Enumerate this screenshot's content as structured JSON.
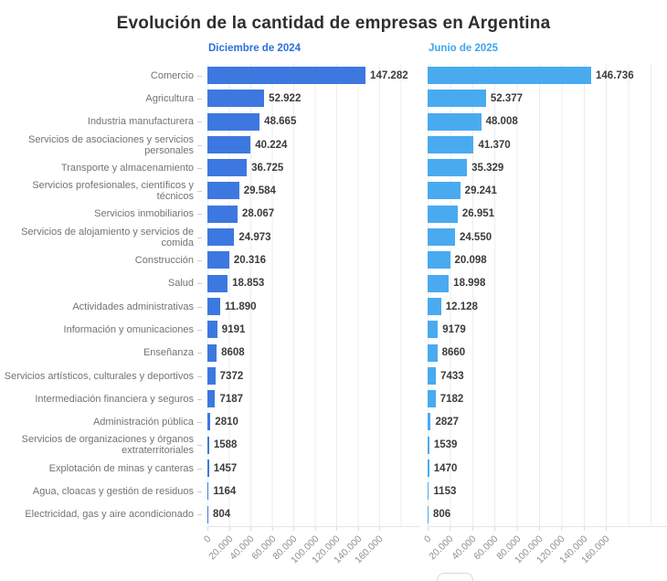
{
  "title": "Evolución de la cantidad de empresas en Argentina",
  "columns": [
    {
      "header": "Diciembre de 2024",
      "header_color": "#2d6fdb",
      "bar_color": "#3d78e0"
    },
    {
      "header": "Junio de 2025",
      "header_color": "#41a5ee",
      "bar_color": "#4aaaf0"
    }
  ],
  "x_tick_labels": [
    "0",
    "20.000",
    "40.000",
    "60.000",
    "80.000",
    "100.000",
    "120.000",
    "140.000",
    "160.000"
  ],
  "chart_data": {
    "type": "bar",
    "orientation": "horizontal",
    "title": "Evolución de la cantidad de empresas en Argentina",
    "grid": true,
    "value_labels": true,
    "x_axis": {
      "range": [
        0,
        160000
      ],
      "ticks": [
        0,
        20000,
        40000,
        60000,
        80000,
        100000,
        120000,
        140000,
        160000
      ]
    },
    "categories": [
      "Comercio",
      "Agricultura",
      "Industria manufacturera",
      "Servicios de asociaciones y servicios personales",
      "Transporte y almacenamiento",
      "Servicios profesionales, científicos y técnicos",
      "Servicios inmobiliarios",
      "Servicios de alojamiento y servicios de comida",
      "Construcción",
      "Salud",
      "Actividades administrativas",
      "Información y omunicaciones",
      "Enseñanza",
      "Servicios artísticos, culturales y deportivos",
      "Intermediación financiera y seguros",
      "Administración pública",
      "Servicios de organizaciones y órganos extraterritoriales",
      "Explotación de minas y canteras",
      "Agua, cloacas y gestión de residuos",
      "Electricidad, gas y aire acondicionado"
    ],
    "series": [
      {
        "name": "Diciembre de 2024",
        "values": [
          147282,
          52922,
          48665,
          40224,
          36725,
          29584,
          28067,
          24973,
          20316,
          18853,
          11890,
          9191,
          8608,
          7372,
          7187,
          2810,
          1588,
          1457,
          1164,
          804
        ],
        "display_labels": [
          "147.282",
          "52.922",
          "48.665",
          "40.224",
          "36.725",
          "29.584",
          "28.067",
          "24.973",
          "20.316",
          "18.853",
          "11.890",
          "9191",
          "8608",
          "7372",
          "7187",
          "2810",
          "1588",
          "1457",
          "1164",
          "804"
        ]
      },
      {
        "name": "Junio de 2025",
        "values": [
          146736,
          52377,
          48008,
          41370,
          35329,
          29241,
          26951,
          24550,
          20098,
          18998,
          12128,
          9179,
          8660,
          7433,
          7182,
          2827,
          1539,
          1470,
          1153,
          806
        ],
        "display_labels": [
          "146.736",
          "52.377",
          "48.008",
          "41.370",
          "35.329",
          "29.241",
          "26.951",
          "24.550",
          "20.098",
          "18.998",
          "12.128",
          "9179",
          "8660",
          "7433",
          "7182",
          "2827",
          "1539",
          "1470",
          "1153",
          "806"
        ]
      }
    ]
  }
}
